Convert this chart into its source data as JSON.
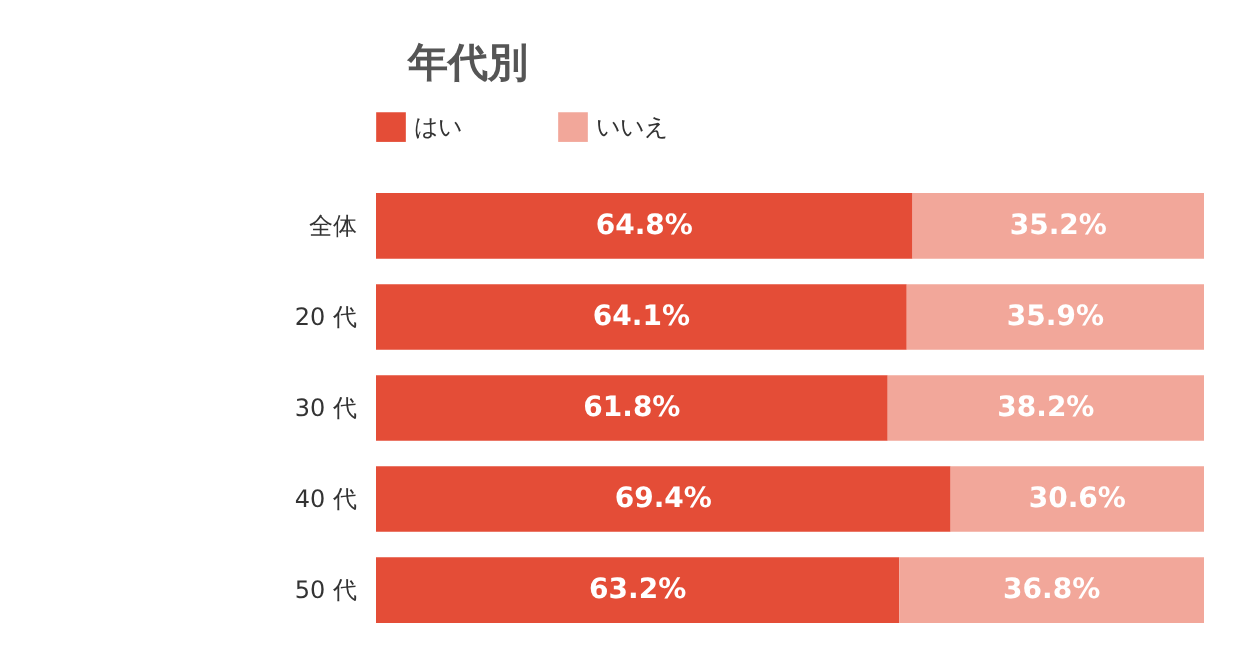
{
  "chart_data": {
    "type": "bar",
    "orientation": "horizontal",
    "stacked": true,
    "title": "年代別",
    "categories": [
      "全体",
      "20 代",
      "30 代",
      "40 代",
      "50 代"
    ],
    "series": [
      {
        "name": "はい",
        "color": "#e44d37",
        "values": [
          64.8,
          64.1,
          61.8,
          69.4,
          63.2
        ],
        "value_labels": [
          "64.8%",
          "64.1%",
          "61.8%",
          "69.4%",
          "63.2%"
        ]
      },
      {
        "name": "いいえ",
        "color": "#f2a79a",
        "values": [
          35.2,
          35.9,
          38.2,
          30.6,
          36.8
        ],
        "value_labels": [
          "35.2%",
          "35.9%",
          "38.2%",
          "30.6%",
          "36.8%"
        ]
      }
    ],
    "xlim": [
      0,
      100
    ],
    "legend": "top left",
    "tick_labels": "y"
  }
}
